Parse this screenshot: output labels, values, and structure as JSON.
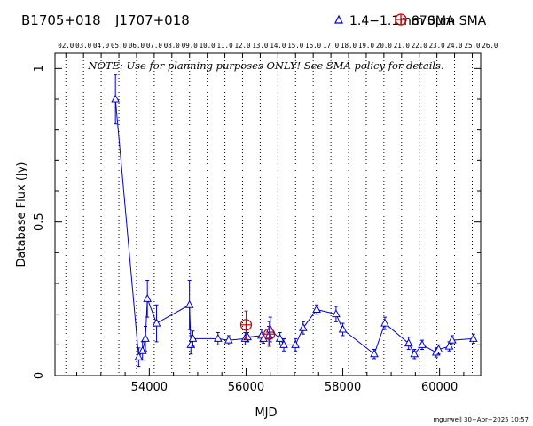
{
  "header": {
    "source_name": "B1705+018",
    "source_alias": "J1707+018",
    "legend_mm": "1.4−1.1mm SMA",
    "legend_870": "870μm SMA",
    "mm_color": "#0000cc",
    "sub_color": "#cc0000"
  },
  "note": "NOTE: Use for planning purposes ONLY!  See SMA policy for details.",
  "footer": "mgurwell 30−Apr−2025 10:57",
  "chart_data": {
    "type": "scatter",
    "xlabel": "MJD",
    "ylabel": "Database Flux (Jy)",
    "xlim": [
      52050,
      60850
    ],
    "ylim": [
      0,
      1.05
    ],
    "x_ticks": [
      {
        "value": 54000,
        "label": "54000"
      },
      {
        "value": 56000,
        "label": "56000"
      },
      {
        "value": 58000,
        "label": "58000"
      },
      {
        "value": 60000,
        "label": "60000"
      }
    ],
    "y_ticks": [
      {
        "value": 0,
        "label": "0"
      },
      {
        "value": 0.5,
        "label": "0.5"
      },
      {
        "value": 1,
        "label": "1"
      }
    ],
    "top_axis": {
      "labels": [
        "02.0",
        "03.0",
        "04.0",
        "05.0",
        "06.0",
        "07.0",
        "08.0",
        "09.0",
        "10.0",
        "11.0",
        "12.0",
        "13.0",
        "14.0",
        "15.0",
        "16.0",
        "17.0",
        "18.0",
        "19.0",
        "20.0",
        "21.0",
        "22.0",
        "23.0",
        "24.0",
        "25.0",
        "26.0"
      ],
      "mjd": [
        52275,
        52640,
        53005,
        53371,
        53736,
        54101,
        54466,
        54832,
        55197,
        55562,
        55927,
        56293,
        56658,
        57023,
        57388,
        57754,
        58119,
        58484,
        58849,
        59215,
        59580,
        59945,
        60310,
        60676,
        61041
      ]
    },
    "grid": "vertical dotted lines at year boundaries",
    "series": [
      {
        "name": "1.4−1.1mm SMA",
        "marker": "triangle",
        "color": "#0000cc",
        "connected": true,
        "points": [
          {
            "x": 53300,
            "y": 0.9,
            "err": 0.08
          },
          {
            "x": 53780,
            "y": 0.06,
            "err": 0.03
          },
          {
            "x": 53860,
            "y": 0.08,
            "err": 0.03
          },
          {
            "x": 53920,
            "y": 0.12,
            "err": 0.04
          },
          {
            "x": 53960,
            "y": 0.25,
            "err": 0.06
          },
          {
            "x": 54150,
            "y": 0.17,
            "err": 0.06
          },
          {
            "x": 54830,
            "y": 0.23,
            "err": 0.08
          },
          {
            "x": 54860,
            "y": 0.1,
            "err": 0.03
          },
          {
            "x": 54900,
            "y": 0.12,
            "err": 0.025
          },
          {
            "x": 55420,
            "y": 0.12,
            "err": 0.02
          },
          {
            "x": 55640,
            "y": 0.115,
            "err": 0.015
          },
          {
            "x": 55980,
            "y": 0.12,
            "err": 0.02
          },
          {
            "x": 56030,
            "y": 0.125,
            "err": 0.015
          },
          {
            "x": 56320,
            "y": 0.13,
            "err": 0.02
          },
          {
            "x": 56360,
            "y": 0.12,
            "err": 0.015
          },
          {
            "x": 56470,
            "y": 0.13,
            "err": 0.03
          },
          {
            "x": 56500,
            "y": 0.15,
            "err": 0.04
          },
          {
            "x": 56700,
            "y": 0.12,
            "err": 0.02
          },
          {
            "x": 56780,
            "y": 0.1,
            "err": 0.02
          },
          {
            "x": 57020,
            "y": 0.1,
            "err": 0.02
          },
          {
            "x": 57180,
            "y": 0.155,
            "err": 0.02
          },
          {
            "x": 57460,
            "y": 0.215,
            "err": 0.015
          },
          {
            "x": 57860,
            "y": 0.2,
            "err": 0.025
          },
          {
            "x": 58000,
            "y": 0.15,
            "err": 0.02
          },
          {
            "x": 58650,
            "y": 0.07,
            "err": 0.015
          },
          {
            "x": 58870,
            "y": 0.17,
            "err": 0.02
          },
          {
            "x": 59360,
            "y": 0.105,
            "err": 0.02
          },
          {
            "x": 59480,
            "y": 0.07,
            "err": 0.015
          },
          {
            "x": 59640,
            "y": 0.1,
            "err": 0.015
          },
          {
            "x": 59930,
            "y": 0.075,
            "err": 0.015
          },
          {
            "x": 59980,
            "y": 0.085,
            "err": 0.015
          },
          {
            "x": 60200,
            "y": 0.095,
            "err": 0.015
          },
          {
            "x": 60260,
            "y": 0.115,
            "err": 0.015
          },
          {
            "x": 60700,
            "y": 0.12,
            "err": 0.015
          }
        ]
      },
      {
        "name": "870μm SMA",
        "marker": "circle-plus",
        "color": "#cc0000",
        "connected": false,
        "points": [
          {
            "x": 56000,
            "y": 0.165,
            "err": 0.045
          },
          {
            "x": 56480,
            "y": 0.135,
            "err": 0.04
          }
        ]
      }
    ]
  }
}
